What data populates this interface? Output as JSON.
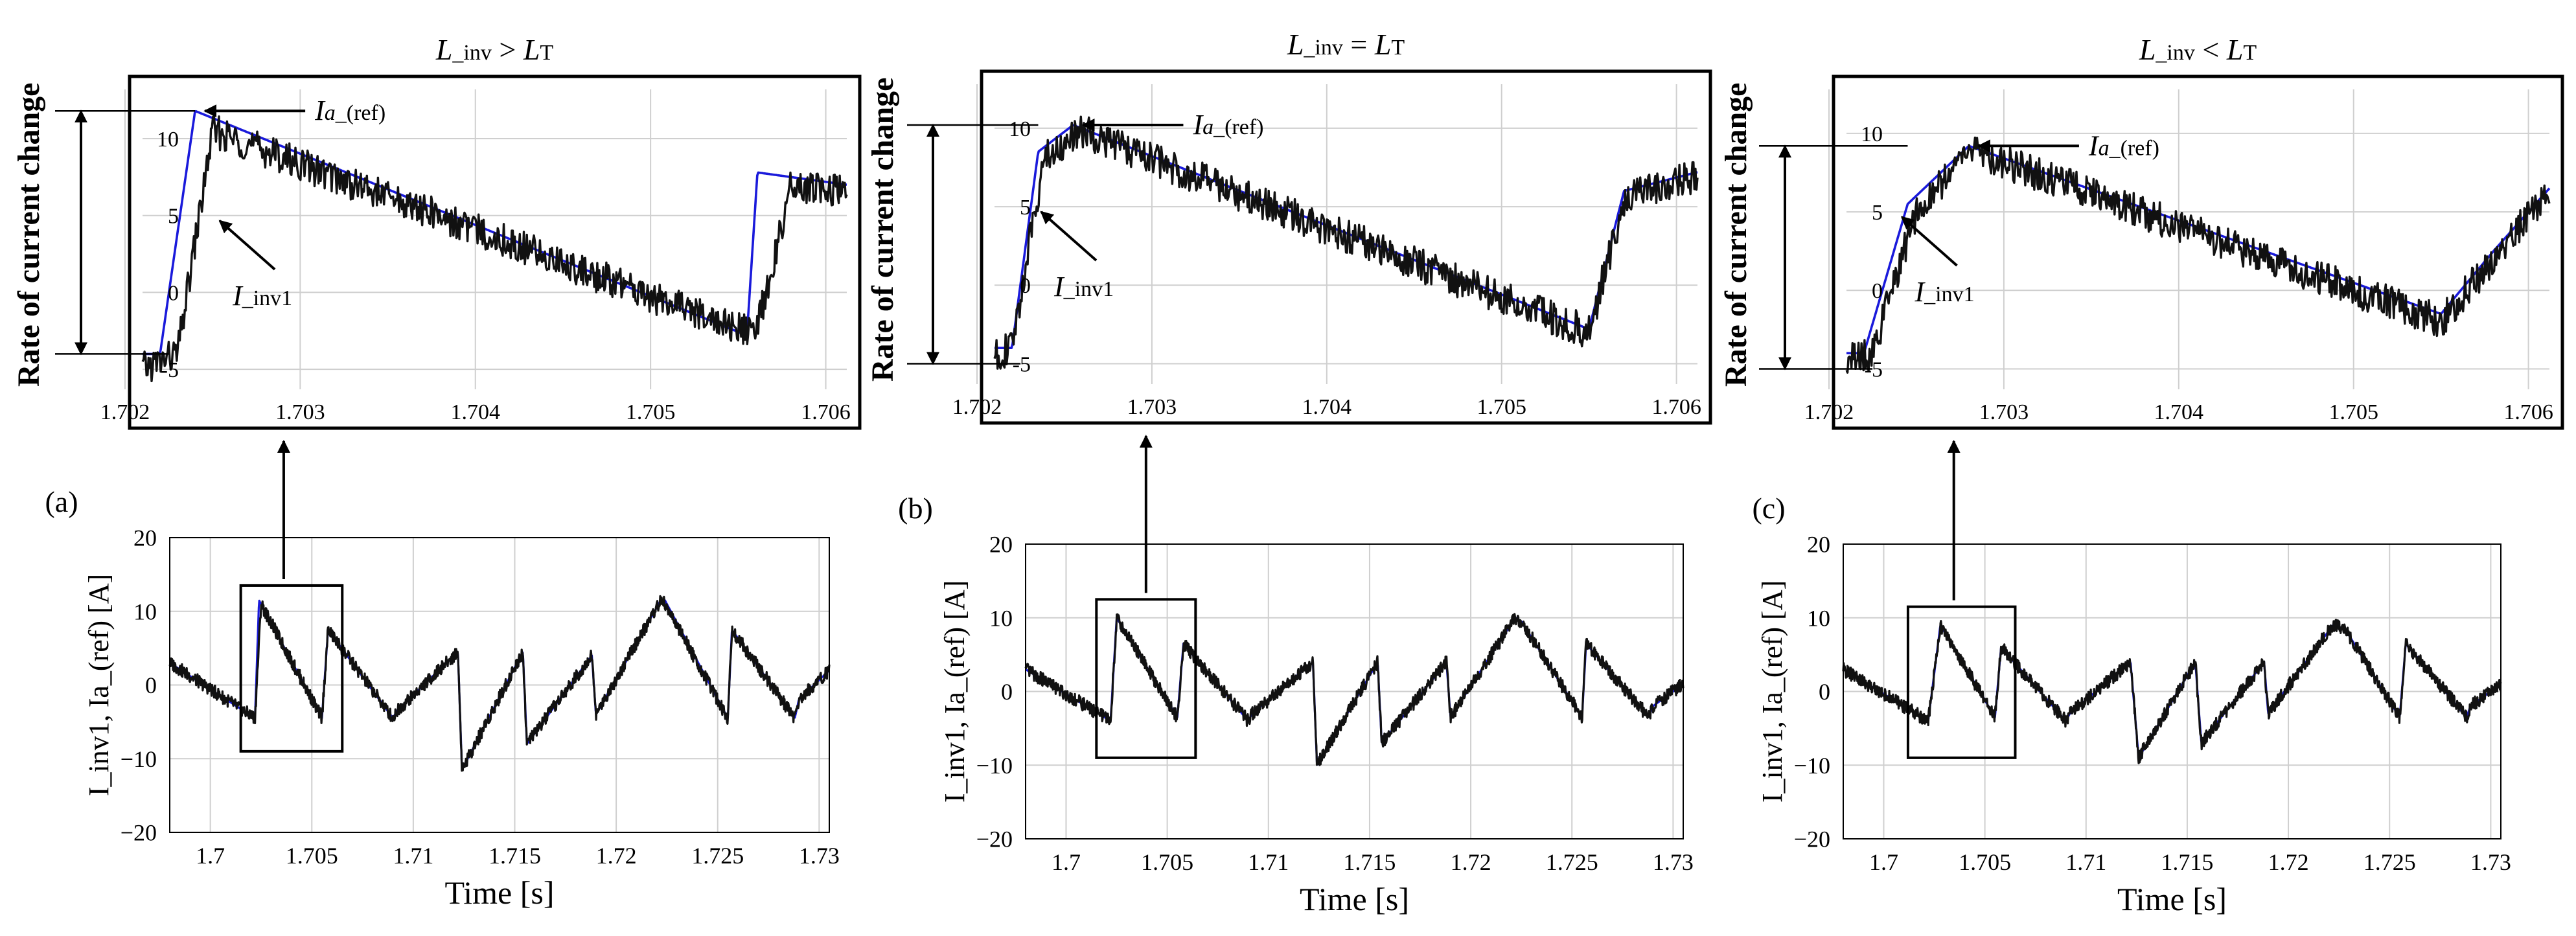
{
  "figure": {
    "panels": [
      {
        "label": "(a)",
        "title": {
          "main": "L",
          "sub": "_inv",
          "op": " > ",
          "rhs": "L",
          "rhs_sub": "T"
        },
        "ref_label": {
          "main": "I",
          "italic_sub": "a",
          "sub": "_(ref)"
        },
        "inv_label": {
          "main": "I",
          "sub": "_inv1"
        }
      },
      {
        "label": "(b)",
        "title": {
          "main": "L",
          "sub": "_inv",
          "op": " = ",
          "rhs": "L",
          "rhs_sub": "T"
        },
        "ref_label": {
          "main": "I",
          "italic_sub": "a",
          "sub": "_(ref)"
        },
        "inv_label": {
          "main": "I",
          "sub": "_inv1"
        }
      },
      {
        "label": "(c)",
        "title": {
          "main": "L",
          "sub": "_inv",
          "op": " < ",
          "rhs": "L",
          "rhs_sub": "T"
        },
        "ref_label": {
          "main": "I",
          "italic_sub": "a",
          "sub": "_(ref)"
        },
        "inv_label": {
          "main": "I",
          "sub": "_inv1"
        }
      }
    ],
    "zoom_ylabel": "Rate of current change",
    "main_ylabel": "I_inv1, Ia_(ref) [A]",
    "main_xlabel": "Time [s]",
    "colors": {
      "ref": "#1a1adb",
      "inv": "#111111",
      "grid": "#cfcfcf",
      "frame": "#000000"
    }
  },
  "chart_data": [
    {
      "type": "line",
      "role": "main",
      "panel": "(a)",
      "xlabel": "Time [s]",
      "ylabel": "I_inv1, Ia_(ref) [A]",
      "xlim": [
        1.698,
        1.7305
      ],
      "ylim": [
        -20,
        20
      ],
      "xticks": [
        1.7,
        1.705,
        1.71,
        1.715,
        1.72,
        1.725,
        1.73
      ],
      "xtick_labels": [
        "1.7",
        "1.705",
        "1.71",
        "1.715",
        "1.72",
        "1.725",
        "1.73"
      ],
      "yticks": [
        -20,
        -10,
        0,
        10,
        20
      ],
      "ytick_labels": [
        "−20",
        "−10",
        "0",
        "10",
        "20"
      ],
      "zoom_box": {
        "x": [
          1.7015,
          1.7065
        ],
        "y": [
          -9,
          13.5
        ]
      },
      "series": [
        {
          "name": "Ia_(ref)",
          "color": "#1a1adb",
          "x": [
            1.698,
            1.7022,
            1.7024,
            1.7055,
            1.7058,
            1.709,
            1.7092,
            1.7122,
            1.7124,
            1.7154,
            1.7156,
            1.7188,
            1.719,
            1.7222,
            1.7224,
            1.7255,
            1.7257,
            1.7288,
            1.729,
            1.7305
          ],
          "y": [
            3,
            -4.5,
            11.5,
            -4.5,
            7.5,
            -4.5,
            -3.5,
            4.5,
            -11.5,
            4.5,
            -8,
            4,
            -4,
            11.5,
            11.5,
            -4.5,
            7.5,
            -4.5,
            -2,
            2
          ]
        },
        {
          "name": "I_inv1",
          "color": "#111111",
          "x": [
            1.698,
            1.7022,
            1.7025,
            1.7055,
            1.7058,
            1.709,
            1.7092,
            1.7122,
            1.7124,
            1.7154,
            1.7156,
            1.7188,
            1.719,
            1.7222,
            1.7224,
            1.7255,
            1.7257,
            1.7288,
            1.729,
            1.7305
          ],
          "y": [
            3,
            -4.5,
            11,
            -4.5,
            7.5,
            -4.5,
            -3.5,
            4.5,
            -11.5,
            4.5,
            -8,
            4,
            -4,
            11.5,
            11,
            -4.5,
            7.5,
            -4.5,
            -2,
            2
          ]
        }
      ]
    },
    {
      "type": "line",
      "role": "zoom",
      "panel": "(a)",
      "title": "L_inv > LT",
      "ylabel": "Rate of current change",
      "xlim": [
        1.7021,
        1.70612
      ],
      "ylim": [
        -6.3,
        13.2
      ],
      "xticks": [
        1.702,
        1.703,
        1.704,
        1.705,
        1.706
      ],
      "xtick_labels": [
        "1.702",
        "1.703",
        "1.704",
        "1.705",
        "1.706"
      ],
      "yticks": [
        -5,
        0,
        5,
        10
      ],
      "ytick_labels": [
        "-5",
        "0",
        "5",
        "10"
      ],
      "annotation_span": [
        -4,
        11.8
      ],
      "series": [
        {
          "name": "Ia_(ref)",
          "color": "#1a1adb",
          "x": [
            1.7021,
            1.7022,
            1.7024,
            1.70555,
            1.70561,
            1.70612
          ],
          "y": [
            -4,
            -4,
            11.8,
            -2.8,
            7.8,
            7
          ]
        },
        {
          "name": "I_inv1",
          "color": "#111111",
          "x": [
            1.7021,
            1.7023,
            1.7025,
            1.7056,
            1.7058,
            1.70612
          ],
          "y": [
            -5,
            -4,
            10.5,
            -2.8,
            6.8,
            6.5
          ]
        }
      ]
    },
    {
      "type": "line",
      "role": "main",
      "panel": "(b)",
      "xlabel": "Time [s]",
      "ylabel": "I_inv1, Ia_(ref) [A]",
      "xlim": [
        1.698,
        1.7305
      ],
      "ylim": [
        -20,
        20
      ],
      "xticks": [
        1.7,
        1.705,
        1.71,
        1.715,
        1.72,
        1.725,
        1.73
      ],
      "xtick_labels": [
        "1.7",
        "1.705",
        "1.71",
        "1.715",
        "1.72",
        "1.725",
        "1.73"
      ],
      "yticks": [
        -20,
        -10,
        0,
        10,
        20
      ],
      "ytick_labels": [
        "−20",
        "−10",
        "0",
        "10",
        "20"
      ],
      "zoom_box": {
        "x": [
          1.7015,
          1.7064
        ],
        "y": [
          -9,
          12.5
        ]
      },
      "series": [
        {
          "name": "Ia_(ref)",
          "color": "#1a1adb",
          "x": [
            1.698,
            1.7022,
            1.7025,
            1.7055,
            1.7058,
            1.709,
            1.7092,
            1.7122,
            1.7124,
            1.7154,
            1.7156,
            1.7188,
            1.719,
            1.7222,
            1.7225,
            1.7255,
            1.7257,
            1.7288,
            1.729,
            1.7305
          ],
          "y": [
            3,
            -4,
            10,
            -3.5,
            6.5,
            -4,
            -3,
            4,
            -10,
            4,
            -7,
            4,
            -3.5,
            10,
            9.5,
            -3.5,
            6.5,
            -3.5,
            -2,
            1
          ]
        },
        {
          "name": "I_inv1",
          "color": "#111111",
          "x": [
            1.698,
            1.7022,
            1.7025,
            1.7055,
            1.7058,
            1.709,
            1.7092,
            1.7122,
            1.7124,
            1.7154,
            1.7156,
            1.7188,
            1.719,
            1.7222,
            1.7225,
            1.7255,
            1.7257,
            1.7288,
            1.729,
            1.7305
          ],
          "y": [
            3,
            -4,
            10,
            -3.5,
            6.5,
            -4,
            -3,
            4,
            -10,
            4,
            -7,
            4,
            -3.5,
            10,
            9.5,
            -3.5,
            6.5,
            -3.5,
            -2,
            1
          ]
        }
      ]
    },
    {
      "type": "line",
      "role": "zoom",
      "panel": "(b)",
      "title": "L_inv = LT",
      "ylabel": "Rate of current change",
      "xlim": [
        1.7021,
        1.70612
      ],
      "ylim": [
        -6.3,
        12.8
      ],
      "xticks": [
        1.702,
        1.703,
        1.704,
        1.705,
        1.706
      ],
      "xtick_labels": [
        "1.702",
        "1.703",
        "1.704",
        "1.705",
        "1.706"
      ],
      "yticks": [
        -5,
        0,
        5,
        10
      ],
      "ytick_labels": [
        "-5",
        "0",
        "5",
        "10"
      ],
      "annotation_span": [
        -5,
        10.2
      ],
      "series": [
        {
          "name": "Ia_(ref)",
          "color": "#1a1adb",
          "x": [
            1.7021,
            1.7022,
            1.70235,
            1.70255,
            1.7055,
            1.7057,
            1.70612
          ],
          "y": [
            -4,
            -4,
            8.5,
            10.2,
            -2.8,
            6,
            7.2
          ]
        },
        {
          "name": "I_inv1",
          "color": "#111111",
          "x": [
            1.7021,
            1.7022,
            1.70238,
            1.7026,
            1.7055,
            1.7057,
            1.70612
          ],
          "y": [
            -4.5,
            -4,
            8,
            9.8,
            -3,
            5.5,
            7
          ]
        }
      ]
    },
    {
      "type": "line",
      "role": "main",
      "panel": "(c)",
      "xlabel": "Time [s]",
      "ylabel": "I_inv1, Ia_(ref) [A]",
      "xlim": [
        1.698,
        1.7305
      ],
      "ylim": [
        -20,
        20
      ],
      "xticks": [
        1.7,
        1.705,
        1.71,
        1.715,
        1.72,
        1.725,
        1.73
      ],
      "xtick_labels": [
        "1.7",
        "1.705",
        "1.71",
        "1.715",
        "1.72",
        "1.725",
        "1.73"
      ],
      "yticks": [
        -20,
        -10,
        0,
        10,
        20
      ],
      "ytick_labels": [
        "−20",
        "−10",
        "0",
        "10",
        "20"
      ],
      "zoom_box": {
        "x": [
          1.7012,
          1.7065
        ],
        "y": [
          -9,
          11.5
        ]
      },
      "series": [
        {
          "name": "Ia_(ref)",
          "color": "#1a1adb",
          "x": [
            1.698,
            1.7022,
            1.7028,
            1.7055,
            1.7058,
            1.709,
            1.7092,
            1.7122,
            1.7126,
            1.7154,
            1.7157,
            1.7188,
            1.719,
            1.7222,
            1.7228,
            1.7255,
            1.7258,
            1.7288,
            1.729,
            1.7305
          ],
          "y": [
            3,
            -4,
            9,
            -3.5,
            6,
            -4,
            -3,
            4,
            -9,
            4,
            -7,
            4,
            -3,
            9,
            8.5,
            -3.5,
            6.5,
            -3.5,
            -2,
            1
          ]
        },
        {
          "name": "I_inv1",
          "color": "#111111",
          "x": [
            1.698,
            1.7022,
            1.7028,
            1.7055,
            1.7058,
            1.709,
            1.7092,
            1.7122,
            1.7126,
            1.7154,
            1.7157,
            1.7188,
            1.719,
            1.7222,
            1.7228,
            1.7255,
            1.7258,
            1.7288,
            1.729,
            1.7305
          ],
          "y": [
            3,
            -4,
            9,
            -3.5,
            6,
            -4,
            -3,
            4,
            -9,
            4,
            -7,
            4,
            -3,
            9,
            8.5,
            -3.5,
            6.5,
            -3.5,
            -2,
            1
          ]
        }
      ]
    },
    {
      "type": "line",
      "role": "zoom",
      "panel": "(c)",
      "title": "L_inv < LT",
      "ylabel": "Rate of current change",
      "xlim": [
        1.7021,
        1.70612
      ],
      "ylim": [
        -6.3,
        12.8
      ],
      "xticks": [
        1.702,
        1.703,
        1.704,
        1.705,
        1.706
      ],
      "xtick_labels": [
        "1.702",
        "1.703",
        "1.704",
        "1.705",
        "1.706"
      ],
      "yticks": [
        -5,
        0,
        5,
        10
      ],
      "ytick_labels": [
        "-5",
        "0",
        "5",
        "10"
      ],
      "annotation_span": [
        -5,
        9.2
      ],
      "series": [
        {
          "name": "Ia_(ref)",
          "color": "#1a1adb",
          "x": [
            1.7021,
            1.7022,
            1.70245,
            1.7028,
            1.7055,
            1.7058,
            1.70612
          ],
          "y": [
            -4,
            -4,
            5.5,
            9.2,
            -1.5,
            2.5,
            6.5
          ]
        },
        {
          "name": "I_inv1",
          "color": "#111111",
          "x": [
            1.7021,
            1.70225,
            1.7025,
            1.7028,
            1.7055,
            1.7058,
            1.70612
          ],
          "y": [
            -4.5,
            -4,
            5,
            9,
            -2,
            2,
            6.5
          ]
        }
      ]
    }
  ]
}
